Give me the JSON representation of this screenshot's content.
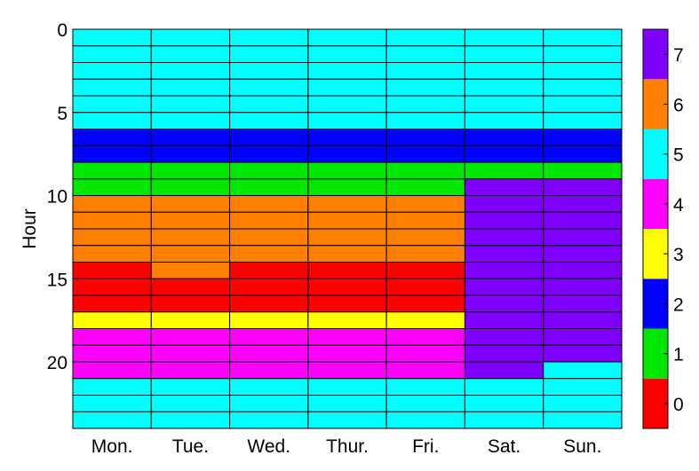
{
  "chart_data": {
    "type": "heatmap",
    "ylabel": "Hour",
    "xlabel": "",
    "title": "",
    "x_categories": [
      "Mon.",
      "Tue.",
      "Wed.",
      "Thur.",
      "Fri.",
      "Sat.",
      "Sun."
    ],
    "y_ticks": [
      0,
      5,
      10,
      15,
      20
    ],
    "ylim": [
      0,
      24
    ],
    "grid": true,
    "colorbar": {
      "ticks": [
        0,
        1,
        2,
        3,
        4,
        5,
        6,
        7
      ],
      "colors": [
        "#ff0000",
        "#00e600",
        "#0000ff",
        "#ffff00",
        "#ff00ff",
        "#00ffff",
        "#ff8000",
        "#8000ff"
      ]
    },
    "values": [
      [
        5,
        5,
        5,
        5,
        5,
        5,
        5
      ],
      [
        5,
        5,
        5,
        5,
        5,
        5,
        5
      ],
      [
        5,
        5,
        5,
        5,
        5,
        5,
        5
      ],
      [
        5,
        5,
        5,
        5,
        5,
        5,
        5
      ],
      [
        5,
        5,
        5,
        5,
        5,
        5,
        5
      ],
      [
        5,
        5,
        5,
        5,
        5,
        5,
        5
      ],
      [
        2,
        2,
        2,
        2,
        2,
        2,
        2
      ],
      [
        2,
        2,
        2,
        2,
        2,
        2,
        2
      ],
      [
        1,
        1,
        1,
        1,
        1,
        1,
        1
      ],
      [
        1,
        1,
        1,
        1,
        1,
        7,
        7
      ],
      [
        6,
        6,
        6,
        6,
        6,
        7,
        7
      ],
      [
        6,
        6,
        6,
        6,
        6,
        7,
        7
      ],
      [
        6,
        6,
        6,
        6,
        6,
        7,
        7
      ],
      [
        6,
        6,
        6,
        6,
        6,
        7,
        7
      ],
      [
        0,
        6,
        0,
        0,
        0,
        7,
        7
      ],
      [
        0,
        0,
        0,
        0,
        0,
        7,
        7
      ],
      [
        0,
        0,
        0,
        0,
        0,
        7,
        7
      ],
      [
        3,
        3,
        3,
        3,
        3,
        7,
        7
      ],
      [
        4,
        4,
        4,
        4,
        4,
        7,
        7
      ],
      [
        4,
        4,
        4,
        4,
        4,
        7,
        7
      ],
      [
        4,
        4,
        4,
        4,
        4,
        7,
        5
      ],
      [
        5,
        5,
        5,
        5,
        5,
        5,
        5
      ],
      [
        5,
        5,
        5,
        5,
        5,
        5,
        5
      ],
      [
        5,
        5,
        5,
        5,
        5,
        5,
        5
      ]
    ]
  }
}
